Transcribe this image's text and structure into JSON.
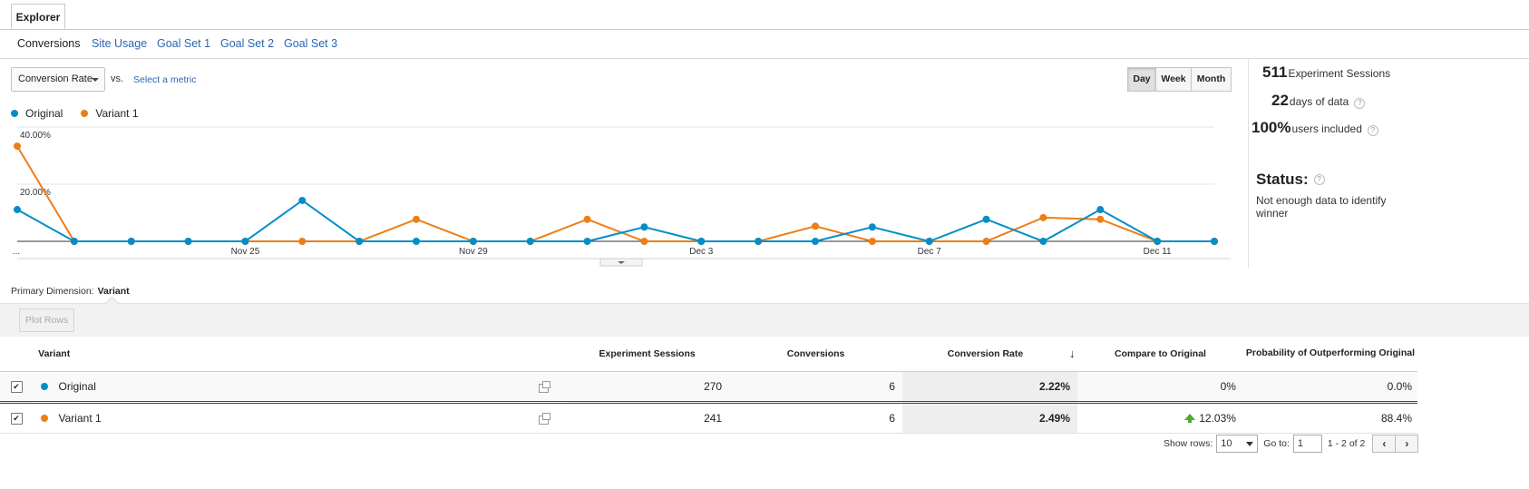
{
  "tab": {
    "label": "Explorer"
  },
  "subtabs": [
    {
      "label": "Conversions",
      "active": true
    },
    {
      "label": "Site Usage",
      "active": false
    },
    {
      "label": "Goal Set 1",
      "active": false
    },
    {
      "label": "Goal Set 2",
      "active": false
    },
    {
      "label": "Goal Set 3",
      "active": false
    }
  ],
  "controls": {
    "metric": "Conversion Rate",
    "vs": "vs.",
    "select_metric": "Select a metric",
    "periods": [
      "Day",
      "Week",
      "Month"
    ],
    "active_period": "Day"
  },
  "side": {
    "sessions_value": "511",
    "sessions_label": "Experiment Sessions",
    "days_value": "22",
    "days_label": "days of data",
    "users_value": "100%",
    "users_label": "users included",
    "help": "?",
    "status_title": "Status:",
    "status_text": "Not enough data to identify winner"
  },
  "chart_data": {
    "type": "line",
    "x_ticks": [
      "...",
      "Nov 25",
      "Nov 29",
      "Dec 3",
      "Dec 7",
      "Dec 11"
    ],
    "y_ticks": [
      "40.00%",
      "20.00%"
    ],
    "ylim": [
      0,
      40
    ],
    "series": [
      {
        "name": "Original",
        "color": "#058dc7",
        "values": [
          11.1,
          0,
          0,
          0,
          0,
          14.3,
          0,
          0,
          0,
          0,
          0,
          5,
          0,
          0,
          0,
          5,
          0,
          7.7,
          0,
          11.1,
          0,
          0
        ]
      },
      {
        "name": "Variant 1",
        "color": "#ed7e17",
        "values": [
          33.3,
          0,
          0,
          0,
          0,
          0,
          0,
          7.7,
          0,
          0,
          7.7,
          0,
          0,
          0,
          5.3,
          0,
          0,
          0,
          8.3,
          7.7,
          0,
          0
        ]
      }
    ]
  },
  "dimension": {
    "label": "Primary Dimension:",
    "value": "Variant"
  },
  "plot_rows": "Plot Rows",
  "table": {
    "headers": {
      "variant": "Variant",
      "sessions": "Experiment Sessions",
      "conversions": "Conversions",
      "rate": "Conversion Rate",
      "compare": "Compare to Original",
      "prob": "Probability of Outperforming Original"
    },
    "rows": [
      {
        "name": "Original",
        "color": "#058dc7",
        "sessions": "270",
        "conversions": "6",
        "rate": "2.22%",
        "compare": "0%",
        "prob": "0.0%"
      },
      {
        "name": "Variant 1",
        "color": "#ed7e17",
        "sessions": "241",
        "conversions": "6",
        "rate": "2.49%",
        "compare": "12.03%",
        "prob": "88.4%"
      }
    ]
  },
  "pager": {
    "show_rows_label": "Show rows:",
    "rows_value": "10",
    "goto_label": "Go to:",
    "goto_value": "1",
    "range": "1 - 2 of 2",
    "prev": "‹",
    "next": "›"
  }
}
